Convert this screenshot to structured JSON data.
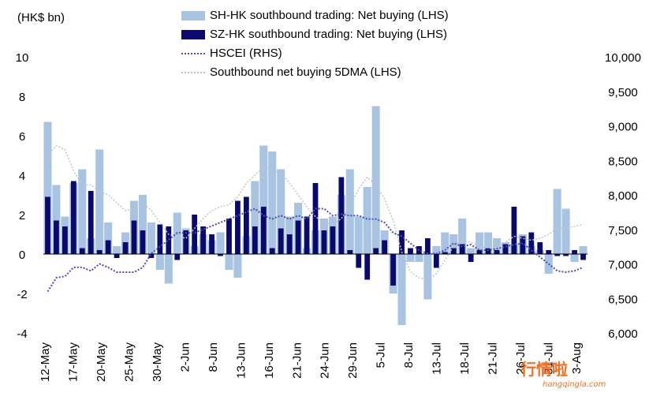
{
  "unit_label": "(HK$ bn)",
  "legend": [
    {
      "label": "SH-HK southbound trading: Net buying (LHS)",
      "color": "#a9c4e3",
      "style": "bar"
    },
    {
      "label": "SZ-HK southbound trading: Net buying (LHS)",
      "color": "#0a0a6e",
      "style": "bar"
    },
    {
      "label": "HSCEI (RHS)",
      "color": "#4b4bb3",
      "style": "dotted"
    },
    {
      "label": "Southbound net buying 5DMA (LHS)",
      "color": "#bbbbbb",
      "style": "dotted"
    }
  ],
  "watermark": {
    "text": "行情啦",
    "sub": "hangqingla.com"
  },
  "chart_data": {
    "type": "bar",
    "x_tick_labels": [
      "12-May",
      "17-May",
      "20-May",
      "25-May",
      "30-May",
      "2-Jun",
      "8-Jun",
      "13-Jun",
      "16-Jun",
      "21-Jun",
      "24-Jun",
      "29-Jun",
      "5-Jul",
      "8-Jul",
      "13-Jul",
      "18-Jul",
      "21-Jul",
      "26-Jul",
      "31-Jul",
      "3-Aug"
    ],
    "n_days": 63,
    "left_axis": {
      "ticks": [
        10,
        8,
        6,
        4,
        2,
        0,
        -2,
        -4
      ],
      "ylim": [
        -4,
        10
      ],
      "negative_color": "#ff0000"
    },
    "right_axis": {
      "ticks": [
        "10,000",
        "9,500",
        "9,000",
        "8,500",
        "8,000",
        "7,500",
        "7,000",
        "6,500",
        "6,000"
      ],
      "ylim": [
        6000,
        10000
      ]
    },
    "series": [
      {
        "name": "SH-HK southbound trading: Net buying (LHS)",
        "values": [
          6.7,
          3.5,
          1.9,
          3.6,
          4.3,
          0.8,
          5.3,
          1.6,
          0.4,
          1.1,
          2.7,
          3.0,
          1.6,
          -0.8,
          -1.5,
          2.1,
          1.3,
          0.4,
          1.0,
          0.7,
          1.1,
          -0.8,
          -1.2,
          0.9,
          3.7,
          5.5,
          5.2,
          4.3,
          1.9,
          2.6,
          0.3,
          1.2,
          1.8,
          1.9,
          3.0,
          4.3,
          1.9,
          3.4,
          7.5,
          1.2,
          -2.0,
          -3.6,
          -0.4,
          -0.4,
          -2.3,
          0.4,
          1.1,
          1.0,
          1.8,
          0.3,
          1.1,
          1.1,
          0.8,
          0.6,
          0.5,
          1.0,
          0.4,
          0.2,
          -1.0,
          3.3,
          2.3,
          -0.4,
          0.4
        ]
      },
      {
        "name": "SZ-HK southbound trading: Net buying (LHS)",
        "values": [
          2.9,
          1.7,
          1.4,
          3.7,
          0.3,
          3.2,
          0.2,
          0.7,
          -0.2,
          0.6,
          1.7,
          1.2,
          -0.2,
          1.5,
          1.4,
          -0.3,
          1.2,
          2.0,
          1.4,
          1.0,
          -0.1,
          1.8,
          2.7,
          2.9,
          1.4,
          2.4,
          0.3,
          1.3,
          1.0,
          1.7,
          1.9,
          3.6,
          1.2,
          1.4,
          3.9,
          0.2,
          -0.7,
          -1.3,
          0.3,
          0.7,
          -1.6,
          1.2,
          0.3,
          0.4,
          0.8,
          -0.7,
          0.1,
          0.3,
          0.5,
          -0.4,
          0.2,
          0.3,
          0.2,
          0.5,
          2.4,
          0.9,
          1.1,
          0.6,
          0.2,
          -0.1,
          -0.1,
          0.2,
          -0.3
        ]
      },
      {
        "name": "HSCEI (RHS)",
        "values": [
          6600,
          6800,
          6820,
          6950,
          6950,
          6900,
          7000,
          6950,
          6880,
          6880,
          6880,
          6950,
          7150,
          7250,
          7350,
          7450,
          7450,
          7450,
          7500,
          7550,
          7600,
          7650,
          7700,
          7750,
          7800,
          7700,
          7650,
          7700,
          7650,
          7700,
          7650,
          7800,
          7800,
          7700,
          7720,
          7700,
          7700,
          7650,
          7650,
          7600,
          7450,
          7400,
          7300,
          7200,
          7150,
          7150,
          7200,
          7300,
          7250,
          7280,
          7200,
          7200,
          7220,
          7250,
          7280,
          7300,
          7200,
          7100,
          7000,
          6900,
          6880,
          6900,
          6950
        ]
      },
      {
        "name": "Southbound net buying 5DMA (LHS)",
        "values": [
          5.0,
          5.5,
          5.3,
          4.2,
          3.5,
          3.5,
          3.2,
          3.0,
          2.6,
          2.2,
          2.3,
          2.6,
          2.2,
          1.6,
          1.0,
          0.9,
          0.8,
          1.3,
          1.8,
          2.2,
          2.4,
          2.5,
          2.9,
          3.6,
          4.0,
          4.4,
          4.3,
          4.1,
          3.6,
          3.0,
          2.4,
          1.9,
          1.6,
          1.5,
          1.8,
          2.4,
          3.3,
          3.9,
          3.5,
          2.8,
          1.7,
          0.1,
          -0.9,
          -1.2,
          -1.3,
          -1.0,
          -0.3,
          0.4,
          0.7,
          0.6,
          0.4,
          0.3,
          0.3,
          0.6,
          0.9,
          0.8,
          0.7,
          0.8,
          1.0,
          1.3,
          1.3,
          1.4,
          1.5
        ]
      }
    ]
  }
}
